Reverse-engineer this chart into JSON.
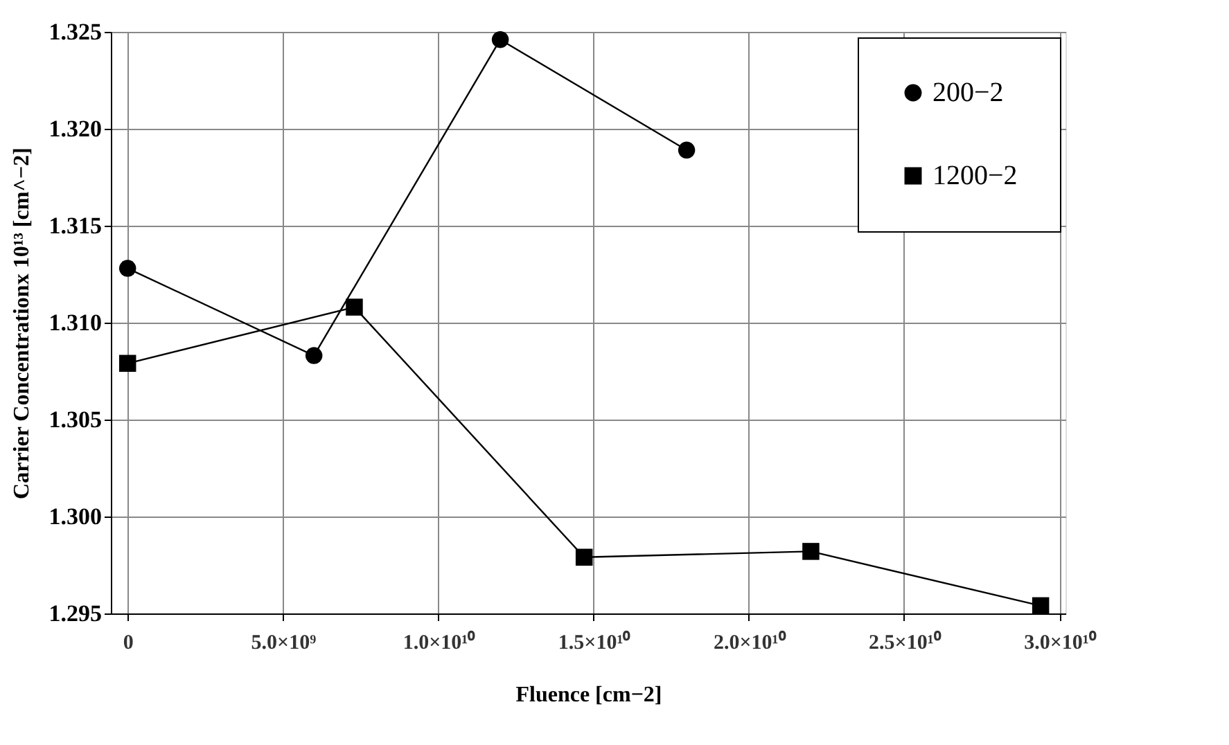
{
  "chart_data": {
    "type": "line",
    "xlabel": "Fluence [cm−2]",
    "ylabel": "Carrier Concentrationx 10¹³ [cm^−2]",
    "series": [
      {
        "name": "200−2",
        "color": "#000000",
        "marker": "circle",
        "x": [
          0,
          6000000000.0,
          12000000000.0,
          18000000000.0
        ],
        "values": [
          1.3128,
          1.3083,
          1.3246,
          1.3189
        ]
      },
      {
        "name": "1200−2",
        "color": "#000000",
        "marker": "square",
        "x": [
          0,
          7300000000.0,
          14700000000.0,
          22000000000.0,
          29400000000.0
        ],
        "values": [
          1.3079,
          1.3108,
          1.2979,
          1.2982,
          1.2954
        ]
      }
    ],
    "xlim": [
      -540000000.0,
      30200000000.0
    ],
    "xticks": [
      0,
      {
        "value": 5000000000.0,
        "label": "5.0×10⁹"
      },
      {
        "value": 10000000000.0,
        "label": "1.0×10¹⁰"
      },
      {
        "value": 15000000000.0,
        "label": "1.5×10¹⁰"
      },
      {
        "value": 20000000000.0,
        "label": "2.0×10¹⁰"
      },
      {
        "value": 25000000000.0,
        "label": "2.5×10¹⁰"
      },
      {
        "value": 30000000000.0,
        "label": "3.0×10¹⁰"
      }
    ],
    "ylim": [
      1.295,
      1.325
    ],
    "yticks": [
      {
        "value": 1.295,
        "label": "1.295"
      },
      {
        "value": 1.3,
        "label": "1.300"
      },
      {
        "value": 1.305,
        "label": "1.305"
      },
      {
        "value": 1.31,
        "label": "1.310"
      },
      {
        "value": 1.315,
        "label": "1.315"
      },
      {
        "value": 1.32,
        "label": "1.320"
      },
      {
        "value": 1.325,
        "label": "1.325"
      }
    ],
    "grid": true,
    "legend": "top right",
    "line_style": "solid"
  }
}
